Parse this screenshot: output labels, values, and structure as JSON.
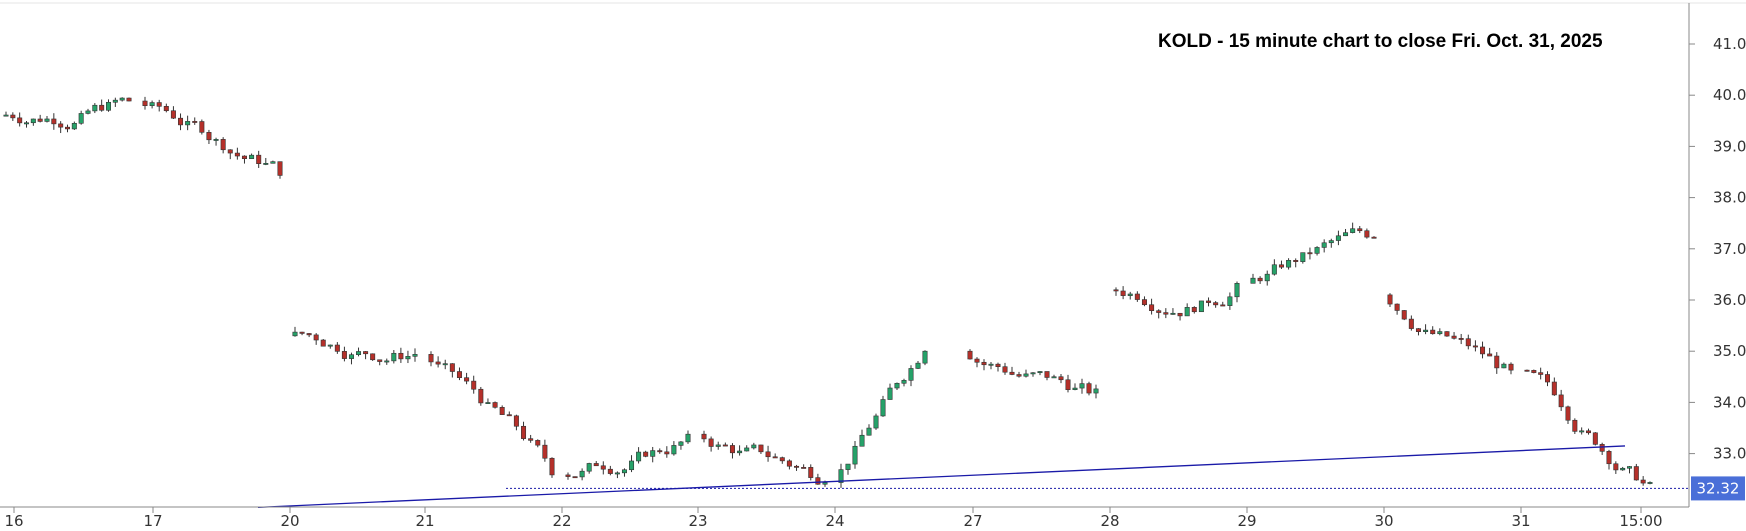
{
  "chart_data": {
    "type": "candlestick",
    "title": "KOLD - 15 minute chart to close Fri. Oct. 31, 2025",
    "xlabel": "",
    "ylabel": "",
    "ylim": [
      31.95,
      41.6
    ],
    "y_ticks": [
      "41.00",
      "40.00",
      "39.00",
      "38.00",
      "37.00",
      "36.00",
      "35.00",
      "34.00",
      "33.00"
    ],
    "x_ticks": [
      "16",
      "17",
      "20",
      "21",
      "22",
      "23",
      "24",
      "27",
      "28",
      "29",
      "30",
      "31",
      "15:00"
    ],
    "grid": false,
    "last_price": "32.32",
    "colors": {
      "up": "#26a269",
      "down": "#b5302a",
      "wick": "#333333",
      "trendline": "#1a1aa8",
      "price_line": "#1a1aa8",
      "price_tag": "#4a6fd8"
    },
    "session_close_prices": [
      {
        "session": "16",
        "close": 39.9
      },
      {
        "session": "17",
        "close": 38.55
      },
      {
        "session": "20",
        "close": 34.95
      },
      {
        "session": "21",
        "close": 32.7
      },
      {
        "session": "22",
        "close": 33.25
      },
      {
        "session": "23",
        "close": 32.55
      },
      {
        "session": "24",
        "close": 35.1
      },
      {
        "session": "27",
        "close": 34.15
      },
      {
        "session": "28",
        "close": 36.2
      },
      {
        "session": "29",
        "close": 37.3
      },
      {
        "session": "30",
        "close": 34.55
      },
      {
        "session": "31",
        "close": 32.32
      }
    ],
    "trendline": {
      "start": {
        "session": "20",
        "price": 31.95
      },
      "end": {
        "session": "31",
        "price": 33.15
      }
    }
  }
}
